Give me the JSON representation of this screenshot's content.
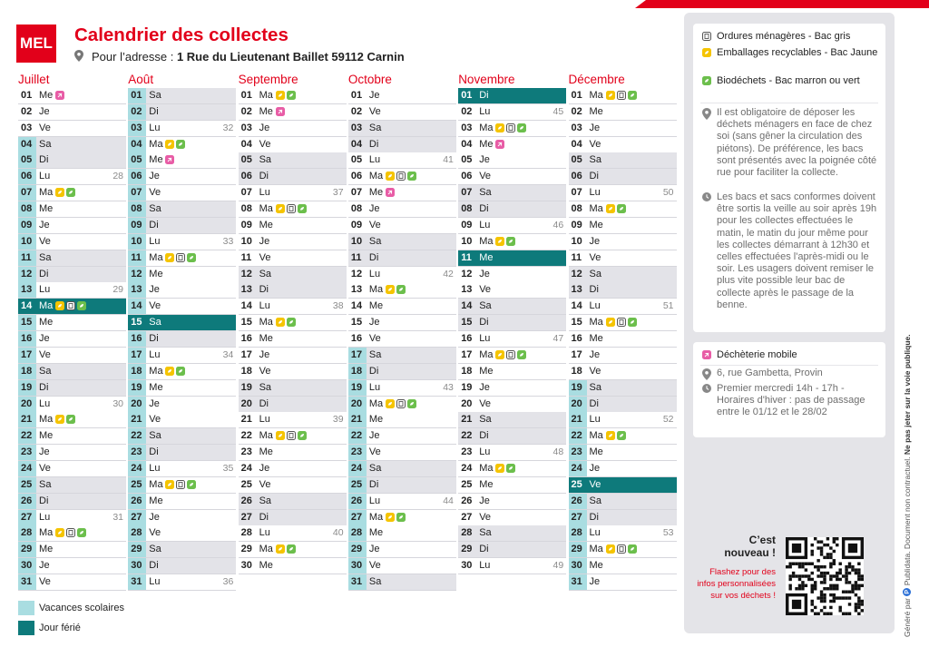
{
  "header": {
    "logo": "MEL",
    "title": "Calendrier des collectes",
    "address_label": "Pour l’adresse :",
    "address": "1 Rue du Lieutenant Baillet 59112 Carnin"
  },
  "months": [
    {
      "name": "Juillet",
      "days": [
        {
          "day": "01",
          "wd": "Me",
          "bins": "m"
        },
        {
          "day": "02",
          "wd": "Je"
        },
        {
          "day": "03",
          "wd": "Ve"
        },
        {
          "day": "04",
          "wd": "Sa",
          "we": true,
          "vac": true
        },
        {
          "day": "05",
          "wd": "Di",
          "we": true,
          "vac": true
        },
        {
          "day": "06",
          "wd": "Lu",
          "week": 28,
          "vac": true
        },
        {
          "day": "07",
          "wd": "Ma",
          "bins": "jv",
          "vac": true
        },
        {
          "day": "08",
          "wd": "Me",
          "vac": true
        },
        {
          "day": "09",
          "wd": "Je",
          "vac": true
        },
        {
          "day": "10",
          "wd": "Ve",
          "vac": true
        },
        {
          "day": "11",
          "wd": "Sa",
          "we": true,
          "vac": true
        },
        {
          "day": "12",
          "wd": "Di",
          "we": true,
          "vac": true
        },
        {
          "day": "13",
          "wd": "Lu",
          "week": 29,
          "vac": true
        },
        {
          "day": "14",
          "wd": "Ma",
          "bins": "jgv",
          "vac": true,
          "hol": true
        },
        {
          "day": "15",
          "wd": "Me",
          "vac": true
        },
        {
          "day": "16",
          "wd": "Je",
          "vac": true
        },
        {
          "day": "17",
          "wd": "Ve",
          "vac": true
        },
        {
          "day": "18",
          "wd": "Sa",
          "we": true,
          "vac": true
        },
        {
          "day": "19",
          "wd": "Di",
          "we": true,
          "vac": true
        },
        {
          "day": "20",
          "wd": "Lu",
          "week": 30,
          "vac": true
        },
        {
          "day": "21",
          "wd": "Ma",
          "bins": "jv",
          "vac": true
        },
        {
          "day": "22",
          "wd": "Me",
          "vac": true
        },
        {
          "day": "23",
          "wd": "Je",
          "vac": true
        },
        {
          "day": "24",
          "wd": "Ve",
          "vac": true
        },
        {
          "day": "25",
          "wd": "Sa",
          "we": true,
          "vac": true
        },
        {
          "day": "26",
          "wd": "Di",
          "we": true,
          "vac": true
        },
        {
          "day": "27",
          "wd": "Lu",
          "week": 31,
          "vac": true
        },
        {
          "day": "28",
          "wd": "Ma",
          "bins": "jgv",
          "vac": true
        },
        {
          "day": "29",
          "wd": "Me",
          "vac": true
        },
        {
          "day": "30",
          "wd": "Je",
          "vac": true
        },
        {
          "day": "31",
          "wd": "Ve",
          "vac": true
        }
      ]
    },
    {
      "name": "Août",
      "days": [
        {
          "day": "01",
          "wd": "Sa",
          "we": true,
          "vac": true
        },
        {
          "day": "02",
          "wd": "Di",
          "we": true,
          "vac": true
        },
        {
          "day": "03",
          "wd": "Lu",
          "week": 32,
          "vac": true
        },
        {
          "day": "04",
          "wd": "Ma",
          "bins": "jv",
          "vac": true
        },
        {
          "day": "05",
          "wd": "Me",
          "bins": "m",
          "vac": true
        },
        {
          "day": "06",
          "wd": "Je",
          "vac": true
        },
        {
          "day": "07",
          "wd": "Ve",
          "vac": true
        },
        {
          "day": "08",
          "wd": "Sa",
          "we": true,
          "vac": true
        },
        {
          "day": "09",
          "wd": "Di",
          "we": true,
          "vac": true
        },
        {
          "day": "10",
          "wd": "Lu",
          "week": 33,
          "vac": true
        },
        {
          "day": "11",
          "wd": "Ma",
          "bins": "jgv",
          "vac": true
        },
        {
          "day": "12",
          "wd": "Me",
          "vac": true
        },
        {
          "day": "13",
          "wd": "Je",
          "vac": true
        },
        {
          "day": "14",
          "wd": "Ve",
          "vac": true
        },
        {
          "day": "15",
          "wd": "Sa",
          "we": true,
          "vac": true,
          "hol": true
        },
        {
          "day": "16",
          "wd": "Di",
          "we": true,
          "vac": true
        },
        {
          "day": "17",
          "wd": "Lu",
          "week": 34,
          "vac": true
        },
        {
          "day": "18",
          "wd": "Ma",
          "bins": "jv",
          "vac": true
        },
        {
          "day": "19",
          "wd": "Me",
          "vac": true
        },
        {
          "day": "20",
          "wd": "Je",
          "vac": true
        },
        {
          "day": "21",
          "wd": "Ve",
          "vac": true
        },
        {
          "day": "22",
          "wd": "Sa",
          "we": true,
          "vac": true
        },
        {
          "day": "23",
          "wd": "Di",
          "we": true,
          "vac": true
        },
        {
          "day": "24",
          "wd": "Lu",
          "week": 35,
          "vac": true
        },
        {
          "day": "25",
          "wd": "Ma",
          "bins": "jgv",
          "vac": true
        },
        {
          "day": "26",
          "wd": "Me",
          "vac": true
        },
        {
          "day": "27",
          "wd": "Je",
          "vac": true
        },
        {
          "day": "28",
          "wd": "Ve",
          "vac": true
        },
        {
          "day": "29",
          "wd": "Sa",
          "we": true,
          "vac": true
        },
        {
          "day": "30",
          "wd": "Di",
          "we": true,
          "vac": true
        },
        {
          "day": "31",
          "wd": "Lu",
          "week": 36,
          "vac": true
        }
      ]
    },
    {
      "name": "Septembre",
      "days": [
        {
          "day": "01",
          "wd": "Ma",
          "bins": "jv"
        },
        {
          "day": "02",
          "wd": "Me",
          "bins": "m"
        },
        {
          "day": "03",
          "wd": "Je"
        },
        {
          "day": "04",
          "wd": "Ve"
        },
        {
          "day": "05",
          "wd": "Sa",
          "we": true
        },
        {
          "day": "06",
          "wd": "Di",
          "we": true
        },
        {
          "day": "07",
          "wd": "Lu",
          "week": 37
        },
        {
          "day": "08",
          "wd": "Ma",
          "bins": "jgv"
        },
        {
          "day": "09",
          "wd": "Me"
        },
        {
          "day": "10",
          "wd": "Je"
        },
        {
          "day": "11",
          "wd": "Ve"
        },
        {
          "day": "12",
          "wd": "Sa",
          "we": true
        },
        {
          "day": "13",
          "wd": "Di",
          "we": true
        },
        {
          "day": "14",
          "wd": "Lu",
          "week": 38
        },
        {
          "day": "15",
          "wd": "Ma",
          "bins": "jv"
        },
        {
          "day": "16",
          "wd": "Me"
        },
        {
          "day": "17",
          "wd": "Je"
        },
        {
          "day": "18",
          "wd": "Ve"
        },
        {
          "day": "19",
          "wd": "Sa",
          "we": true
        },
        {
          "day": "20",
          "wd": "Di",
          "we": true
        },
        {
          "day": "21",
          "wd": "Lu",
          "week": 39
        },
        {
          "day": "22",
          "wd": "Ma",
          "bins": "jgv"
        },
        {
          "day": "23",
          "wd": "Me"
        },
        {
          "day": "24",
          "wd": "Je"
        },
        {
          "day": "25",
          "wd": "Ve"
        },
        {
          "day": "26",
          "wd": "Sa",
          "we": true
        },
        {
          "day": "27",
          "wd": "Di",
          "we": true
        },
        {
          "day": "28",
          "wd": "Lu",
          "week": 40
        },
        {
          "day": "29",
          "wd": "Ma",
          "bins": "jv"
        },
        {
          "day": "30",
          "wd": "Me"
        }
      ]
    },
    {
      "name": "Octobre",
      "days": [
        {
          "day": "01",
          "wd": "Je"
        },
        {
          "day": "02",
          "wd": "Ve"
        },
        {
          "day": "03",
          "wd": "Sa",
          "we": true
        },
        {
          "day": "04",
          "wd": "Di",
          "we": true
        },
        {
          "day": "05",
          "wd": "Lu",
          "week": 41
        },
        {
          "day": "06",
          "wd": "Ma",
          "bins": "jgv"
        },
        {
          "day": "07",
          "wd": "Me",
          "bins": "m"
        },
        {
          "day": "08",
          "wd": "Je"
        },
        {
          "day": "09",
          "wd": "Ve"
        },
        {
          "day": "10",
          "wd": "Sa",
          "we": true
        },
        {
          "day": "11",
          "wd": "Di",
          "we": true
        },
        {
          "day": "12",
          "wd": "Lu",
          "week": 42
        },
        {
          "day": "13",
          "wd": "Ma",
          "bins": "jv"
        },
        {
          "day": "14",
          "wd": "Me"
        },
        {
          "day": "15",
          "wd": "Je"
        },
        {
          "day": "16",
          "wd": "Ve"
        },
        {
          "day": "17",
          "wd": "Sa",
          "we": true,
          "vac": true
        },
        {
          "day": "18",
          "wd": "Di",
          "we": true,
          "vac": true
        },
        {
          "day": "19",
          "wd": "Lu",
          "week": 43,
          "vac": true
        },
        {
          "day": "20",
          "wd": "Ma",
          "bins": "jgv",
          "vac": true
        },
        {
          "day": "21",
          "wd": "Me",
          "vac": true
        },
        {
          "day": "22",
          "wd": "Je",
          "vac": true
        },
        {
          "day": "23",
          "wd": "Ve",
          "vac": true
        },
        {
          "day": "24",
          "wd": "Sa",
          "we": true,
          "vac": true
        },
        {
          "day": "25",
          "wd": "Di",
          "we": true,
          "vac": true
        },
        {
          "day": "26",
          "wd": "Lu",
          "week": 44,
          "vac": true
        },
        {
          "day": "27",
          "wd": "Ma",
          "bins": "jv",
          "vac": true
        },
        {
          "day": "28",
          "wd": "Me",
          "vac": true
        },
        {
          "day": "29",
          "wd": "Je",
          "vac": true
        },
        {
          "day": "30",
          "wd": "Ve",
          "vac": true
        },
        {
          "day": "31",
          "wd": "Sa",
          "we": true,
          "vac": true
        }
      ]
    },
    {
      "name": "Novembre",
      "days": [
        {
          "day": "01",
          "wd": "Di",
          "we": true,
          "hol": true
        },
        {
          "day": "02",
          "wd": "Lu",
          "week": 45
        },
        {
          "day": "03",
          "wd": "Ma",
          "bins": "jgv"
        },
        {
          "day": "04",
          "wd": "Me",
          "bins": "m"
        },
        {
          "day": "05",
          "wd": "Je"
        },
        {
          "day": "06",
          "wd": "Ve"
        },
        {
          "day": "07",
          "wd": "Sa",
          "we": true
        },
        {
          "day": "08",
          "wd": "Di",
          "we": true
        },
        {
          "day": "09",
          "wd": "Lu",
          "week": 46
        },
        {
          "day": "10",
          "wd": "Ma",
          "bins": "jv"
        },
        {
          "day": "11",
          "wd": "Me",
          "hol": true
        },
        {
          "day": "12",
          "wd": "Je"
        },
        {
          "day": "13",
          "wd": "Ve"
        },
        {
          "day": "14",
          "wd": "Sa",
          "we": true
        },
        {
          "day": "15",
          "wd": "Di",
          "we": true
        },
        {
          "day": "16",
          "wd": "Lu",
          "week": 47
        },
        {
          "day": "17",
          "wd": "Ma",
          "bins": "jgv"
        },
        {
          "day": "18",
          "wd": "Me"
        },
        {
          "day": "19",
          "wd": "Je"
        },
        {
          "day": "20",
          "wd": "Ve"
        },
        {
          "day": "21",
          "wd": "Sa",
          "we": true
        },
        {
          "day": "22",
          "wd": "Di",
          "we": true
        },
        {
          "day": "23",
          "wd": "Lu",
          "week": 48
        },
        {
          "day": "24",
          "wd": "Ma",
          "bins": "jv"
        },
        {
          "day": "25",
          "wd": "Me"
        },
        {
          "day": "26",
          "wd": "Je"
        },
        {
          "day": "27",
          "wd": "Ve"
        },
        {
          "day": "28",
          "wd": "Sa",
          "we": true
        },
        {
          "day": "29",
          "wd": "Di",
          "we": true
        },
        {
          "day": "30",
          "wd": "Lu",
          "week": 49
        }
      ]
    },
    {
      "name": "Décembre",
      "days": [
        {
          "day": "01",
          "wd": "Ma",
          "bins": "jgv"
        },
        {
          "day": "02",
          "wd": "Me"
        },
        {
          "day": "03",
          "wd": "Je"
        },
        {
          "day": "04",
          "wd": "Ve"
        },
        {
          "day": "05",
          "wd": "Sa",
          "we": true
        },
        {
          "day": "06",
          "wd": "Di",
          "we": true
        },
        {
          "day": "07",
          "wd": "Lu",
          "week": 50
        },
        {
          "day": "08",
          "wd": "Ma",
          "bins": "jv"
        },
        {
          "day": "09",
          "wd": "Me"
        },
        {
          "day": "10",
          "wd": "Je"
        },
        {
          "day": "11",
          "wd": "Ve"
        },
        {
          "day": "12",
          "wd": "Sa",
          "we": true
        },
        {
          "day": "13",
          "wd": "Di",
          "we": true
        },
        {
          "day": "14",
          "wd": "Lu",
          "week": 51
        },
        {
          "day": "15",
          "wd": "Ma",
          "bins": "jgv"
        },
        {
          "day": "16",
          "wd": "Me"
        },
        {
          "day": "17",
          "wd": "Je"
        },
        {
          "day": "18",
          "wd": "Ve"
        },
        {
          "day": "19",
          "wd": "Sa",
          "we": true,
          "vac": true
        },
        {
          "day": "20",
          "wd": "Di",
          "we": true,
          "vac": true
        },
        {
          "day": "21",
          "wd": "Lu",
          "week": 52,
          "vac": true
        },
        {
          "day": "22",
          "wd": "Ma",
          "bins": "jv",
          "vac": true
        },
        {
          "day": "23",
          "wd": "Me",
          "vac": true
        },
        {
          "day": "24",
          "wd": "Je",
          "vac": true
        },
        {
          "day": "25",
          "wd": "Ve",
          "vac": true,
          "hol": true
        },
        {
          "day": "26",
          "wd": "Sa",
          "we": true,
          "vac": true
        },
        {
          "day": "27",
          "wd": "Di",
          "we": true,
          "vac": true
        },
        {
          "day": "28",
          "wd": "Lu",
          "week": 53,
          "vac": true
        },
        {
          "day": "29",
          "wd": "Ma",
          "bins": "jgv",
          "vac": true
        },
        {
          "day": "30",
          "wd": "Me",
          "vac": true
        },
        {
          "day": "31",
          "wd": "Je",
          "vac": true
        }
      ]
    }
  ],
  "key": {
    "vacation": "Vacances scolaires",
    "holiday": "Jour férié"
  },
  "legend": [
    {
      "code": "g",
      "label": "Ordures ménagères - Bac gris"
    },
    {
      "code": "j",
      "label": "Emballages recyclables - Bac Jaune"
    },
    {
      "code": "v",
      "label": "Biodéchets - Bac marron ou vert"
    }
  ],
  "info": {
    "placement": "Il est obligatoire de déposer les déchets ménagers en face de chez soi (sans gêner la circulation des piétons). De préférence, les bacs sont présentés avec la poignée côté rue pour faciliter la collecte.",
    "timing": "Les bacs et sacs conformes doivent être sortis la veille au soir après 19h pour les collectes effectuées le matin, le matin du jour même pour les collectes démarrant à 12h30 et celles effectuées l'après-midi ou le soir. Les usagers doivent remiser le plus vite possible leur bac de collecte après le passage de la benne."
  },
  "dechetterie": {
    "code": "m",
    "title": "Déchèterie mobile",
    "address": "6, rue Gambetta, Provin",
    "hours": "Premier mercredi 14h - 17h - Horaires d'hiver : pas de passage entre le 01/12 et le 28/02"
  },
  "promo": {
    "title": "C’est nouveau !",
    "text": "Flashez pour des infos personnalisées sur vos déchets !"
  },
  "footer": {
    "generated": "Généré par",
    "brand": "Publidata.",
    "disclaimer": "Document non contractuel.",
    "notice": "Ne pas jeter sur la voie publique."
  }
}
